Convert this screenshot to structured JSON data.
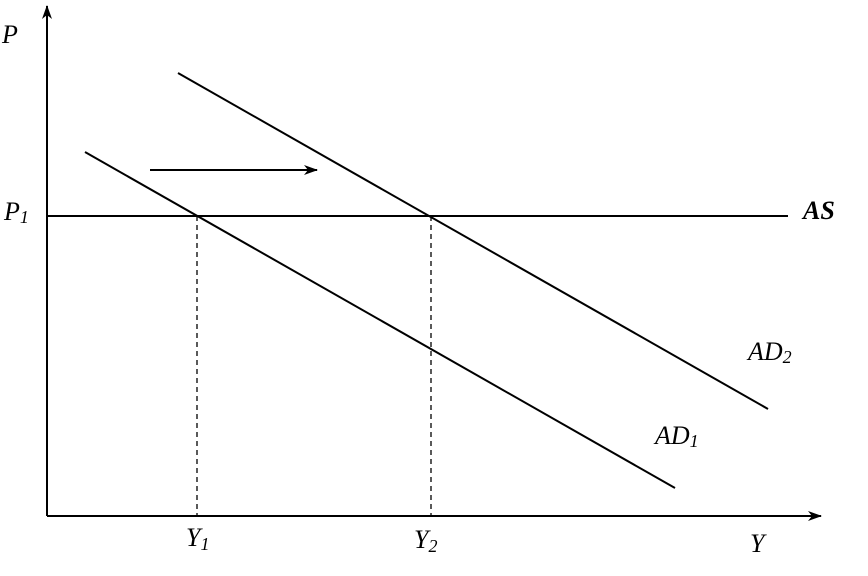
{
  "axes": {
    "y_label": "P",
    "x_label": "Y"
  },
  "price_level": {
    "main": "P",
    "sub": "1"
  },
  "curves": [
    {
      "main": "AS"
    },
    {
      "main": "AD",
      "sub": "1"
    },
    {
      "main": "AD",
      "sub": "2"
    }
  ],
  "outputs": [
    {
      "main": "Y",
      "sub": "1"
    },
    {
      "main": "Y",
      "sub": "2"
    }
  ]
}
